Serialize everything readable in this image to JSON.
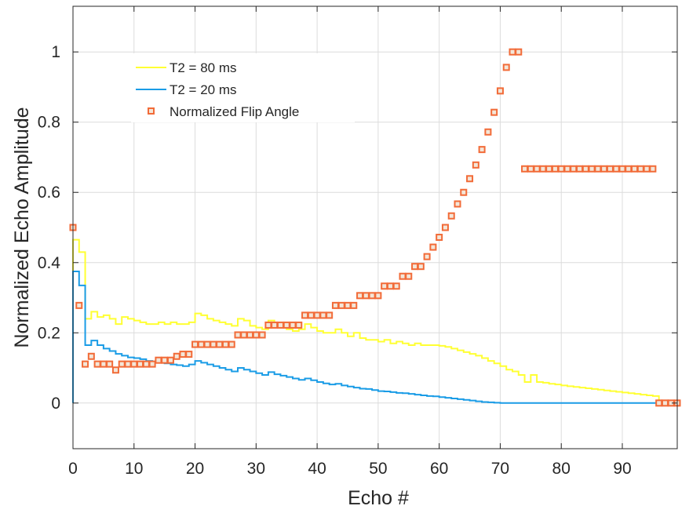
{
  "chart_data": {
    "type": "line",
    "xlabel": "Echo #",
    "ylabel": "Normalized Echo Amplitude",
    "xlim": [
      0,
      99
    ],
    "ylim": [
      -0.13,
      1.13
    ],
    "x_ticks": [
      0,
      10,
      20,
      30,
      40,
      50,
      60,
      70,
      80,
      90
    ],
    "y_ticks": [
      0,
      0.2,
      0.4,
      0.6,
      0.8,
      1
    ],
    "x_tick_labels": [
      "0",
      "10",
      "20",
      "30",
      "40",
      "50",
      "60",
      "70",
      "80",
      "90"
    ],
    "y_tick_labels": [
      "0",
      "0.2",
      "0.4",
      "0.6",
      "0.8",
      "1"
    ],
    "grid": true,
    "legend_position": "top-left",
    "series": [
      {
        "name": "T2 = 80 ms",
        "style": "stairs",
        "color": "#ffff33",
        "x": [
          0,
          1,
          2,
          3,
          4,
          5,
          6,
          7,
          8,
          9,
          10,
          11,
          12,
          13,
          14,
          15,
          16,
          17,
          18,
          19,
          20,
          21,
          22,
          23,
          24,
          25,
          26,
          27,
          28,
          29,
          30,
          31,
          32,
          33,
          34,
          35,
          36,
          37,
          38,
          39,
          40,
          41,
          42,
          43,
          44,
          45,
          46,
          47,
          48,
          49,
          50,
          51,
          52,
          53,
          54,
          55,
          56,
          57,
          58,
          59,
          60,
          61,
          62,
          63,
          64,
          65,
          66,
          67,
          68,
          69,
          70,
          71,
          72,
          73,
          74,
          75,
          76,
          77,
          78,
          79,
          80,
          81,
          82,
          83,
          84,
          85,
          86,
          87,
          88,
          89,
          90,
          91,
          92,
          93,
          94,
          95,
          96
        ],
        "y": [
          0.465,
          0.43,
          0.24,
          0.26,
          0.245,
          0.25,
          0.24,
          0.225,
          0.245,
          0.24,
          0.235,
          0.23,
          0.225,
          0.225,
          0.23,
          0.225,
          0.23,
          0.225,
          0.225,
          0.23,
          0.255,
          0.25,
          0.24,
          0.235,
          0.23,
          0.225,
          0.22,
          0.24,
          0.235,
          0.22,
          0.215,
          0.21,
          0.235,
          0.22,
          0.215,
          0.21,
          0.205,
          0.21,
          0.225,
          0.215,
          0.205,
          0.2,
          0.2,
          0.21,
          0.2,
          0.19,
          0.2,
          0.185,
          0.18,
          0.18,
          0.175,
          0.18,
          0.17,
          0.175,
          0.17,
          0.165,
          0.17,
          0.165,
          0.165,
          0.165,
          0.163,
          0.16,
          0.155,
          0.15,
          0.145,
          0.14,
          0.135,
          0.128,
          0.12,
          0.113,
          0.105,
          0.095,
          0.09,
          0.08,
          0.06,
          0.08,
          0.06,
          0.058,
          0.055,
          0.053,
          0.05,
          0.048,
          0.046,
          0.044,
          0.042,
          0.04,
          0.038,
          0.036,
          0.034,
          0.032,
          0.03,
          0.028,
          0.026,
          0.024,
          0.022,
          0.02,
          0.0
        ]
      },
      {
        "name": "T2 = 20 ms",
        "style": "stairs",
        "color": "#1a9ce6",
        "x": [
          0,
          1,
          2,
          3,
          4,
          5,
          6,
          7,
          8,
          9,
          10,
          11,
          12,
          13,
          14,
          15,
          16,
          17,
          18,
          19,
          20,
          21,
          22,
          23,
          24,
          25,
          26,
          27,
          28,
          29,
          30,
          31,
          32,
          33,
          34,
          35,
          36,
          37,
          38,
          39,
          40,
          41,
          42,
          43,
          44,
          45,
          46,
          47,
          48,
          49,
          50,
          51,
          52,
          53,
          54,
          55,
          56,
          57,
          58,
          59,
          60,
          61,
          62,
          63,
          64,
          65,
          66,
          67,
          68,
          69,
          70,
          71,
          72,
          73,
          74,
          75,
          76,
          77,
          78,
          79,
          80,
          81,
          82,
          83,
          84,
          85,
          86,
          87,
          88,
          89,
          90,
          91,
          92,
          93,
          94,
          95,
          96
        ],
        "y": [
          0.375,
          0.335,
          0.165,
          0.178,
          0.165,
          0.155,
          0.148,
          0.14,
          0.135,
          0.13,
          0.128,
          0.125,
          0.12,
          0.118,
          0.115,
          0.113,
          0.11,
          0.108,
          0.105,
          0.11,
          0.12,
          0.115,
          0.11,
          0.105,
          0.1,
          0.095,
          0.09,
          0.1,
          0.095,
          0.09,
          0.085,
          0.08,
          0.088,
          0.082,
          0.078,
          0.074,
          0.07,
          0.066,
          0.07,
          0.065,
          0.06,
          0.056,
          0.053,
          0.055,
          0.05,
          0.047,
          0.044,
          0.041,
          0.04,
          0.037,
          0.034,
          0.033,
          0.031,
          0.029,
          0.028,
          0.026,
          0.024,
          0.022,
          0.02,
          0.019,
          0.017,
          0.015,
          0.013,
          0.011,
          0.009,
          0.007,
          0.005,
          0.003,
          0.002,
          0.001,
          0.0,
          0.0,
          0.0,
          0.0,
          0.0,
          0.0,
          0.0,
          0.0,
          0.0,
          0.0,
          0.0,
          0.0,
          0.0,
          0.0,
          0.0,
          0.0,
          0.0,
          0.0,
          0.0,
          0.0,
          0.0,
          0.0,
          0.0,
          0.0,
          0.0,
          0.0,
          0.0
        ]
      },
      {
        "name": "Normalized Flip Angle",
        "style": "markers",
        "color": "#f26b38",
        "x": [
          0,
          1,
          2,
          3,
          4,
          5,
          6,
          7,
          8,
          9,
          10,
          11,
          12,
          13,
          14,
          15,
          16,
          17,
          18,
          19,
          20,
          21,
          22,
          23,
          24,
          25,
          26,
          27,
          28,
          29,
          30,
          31,
          32,
          33,
          34,
          35,
          36,
          37,
          38,
          39,
          40,
          41,
          42,
          43,
          44,
          45,
          46,
          47,
          48,
          49,
          50,
          51,
          52,
          53,
          54,
          55,
          56,
          57,
          58,
          59,
          60,
          61,
          62,
          63,
          64,
          65,
          66,
          67,
          68,
          69,
          70,
          71,
          72,
          73,
          74,
          75,
          76,
          77,
          78,
          79,
          80,
          81,
          82,
          83,
          84,
          85,
          86,
          87,
          88,
          89,
          90,
          91,
          92,
          93,
          94,
          95,
          96,
          97,
          98,
          99
        ],
        "y": [
          0.5,
          0.278,
          0.111,
          0.133,
          0.111,
          0.111,
          0.111,
          0.094,
          0.111,
          0.111,
          0.111,
          0.111,
          0.111,
          0.111,
          0.122,
          0.122,
          0.122,
          0.133,
          0.139,
          0.139,
          0.167,
          0.167,
          0.167,
          0.167,
          0.167,
          0.167,
          0.167,
          0.194,
          0.194,
          0.194,
          0.194,
          0.194,
          0.222,
          0.222,
          0.222,
          0.222,
          0.222,
          0.222,
          0.25,
          0.25,
          0.25,
          0.25,
          0.25,
          0.278,
          0.278,
          0.278,
          0.278,
          0.306,
          0.306,
          0.306,
          0.306,
          0.333,
          0.333,
          0.333,
          0.361,
          0.361,
          0.389,
          0.389,
          0.417,
          0.444,
          0.472,
          0.5,
          0.533,
          0.567,
          0.6,
          0.639,
          0.678,
          0.722,
          0.772,
          0.828,
          0.889,
          0.956,
          1.0,
          1.0,
          0.667,
          0.667,
          0.667,
          0.667,
          0.667,
          0.667,
          0.667,
          0.667,
          0.667,
          0.667,
          0.667,
          0.667,
          0.667,
          0.667,
          0.667,
          0.667,
          0.667,
          0.667,
          0.667,
          0.667,
          0.667,
          0.667,
          0.0,
          0.0,
          0.0,
          0.0
        ]
      }
    ]
  }
}
